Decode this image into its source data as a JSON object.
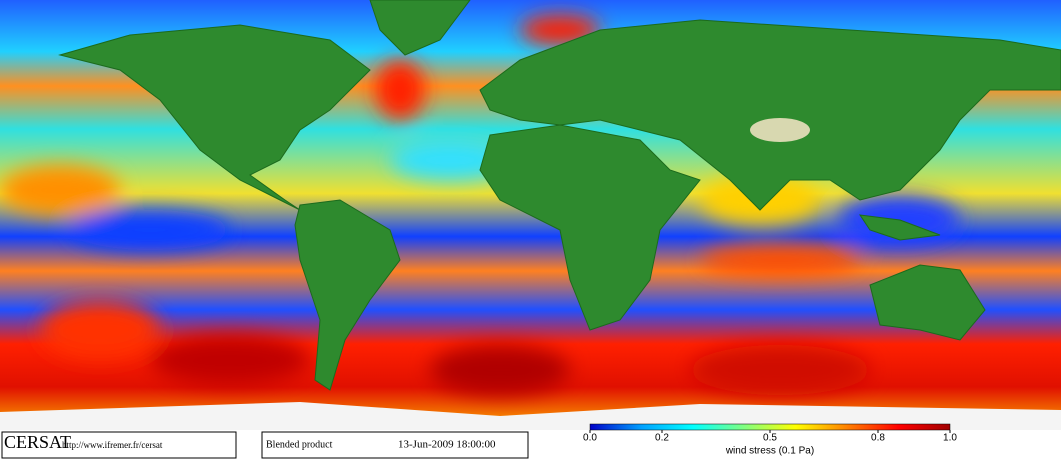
{
  "footer": {
    "logo": "CERSAT",
    "url": "http://www.ifremer.fr/cersat",
    "product": "Blended product",
    "date": "13-Jun-2009 18:00:00"
  },
  "colorbar": {
    "ticks": [
      {
        "value": 0,
        "label": "0.0"
      },
      0.2,
      0.5,
      0.8,
      {
        "value": 1,
        "label": "1.0"
      }
    ],
    "label": "wind stress (0.1 Pa)",
    "colors": [
      "#0000c8",
      "#00a0ff",
      "#00ffff",
      "#80ff80",
      "#ffff00",
      "#ff8000",
      "#ff0000",
      "#a00000"
    ]
  }
}
